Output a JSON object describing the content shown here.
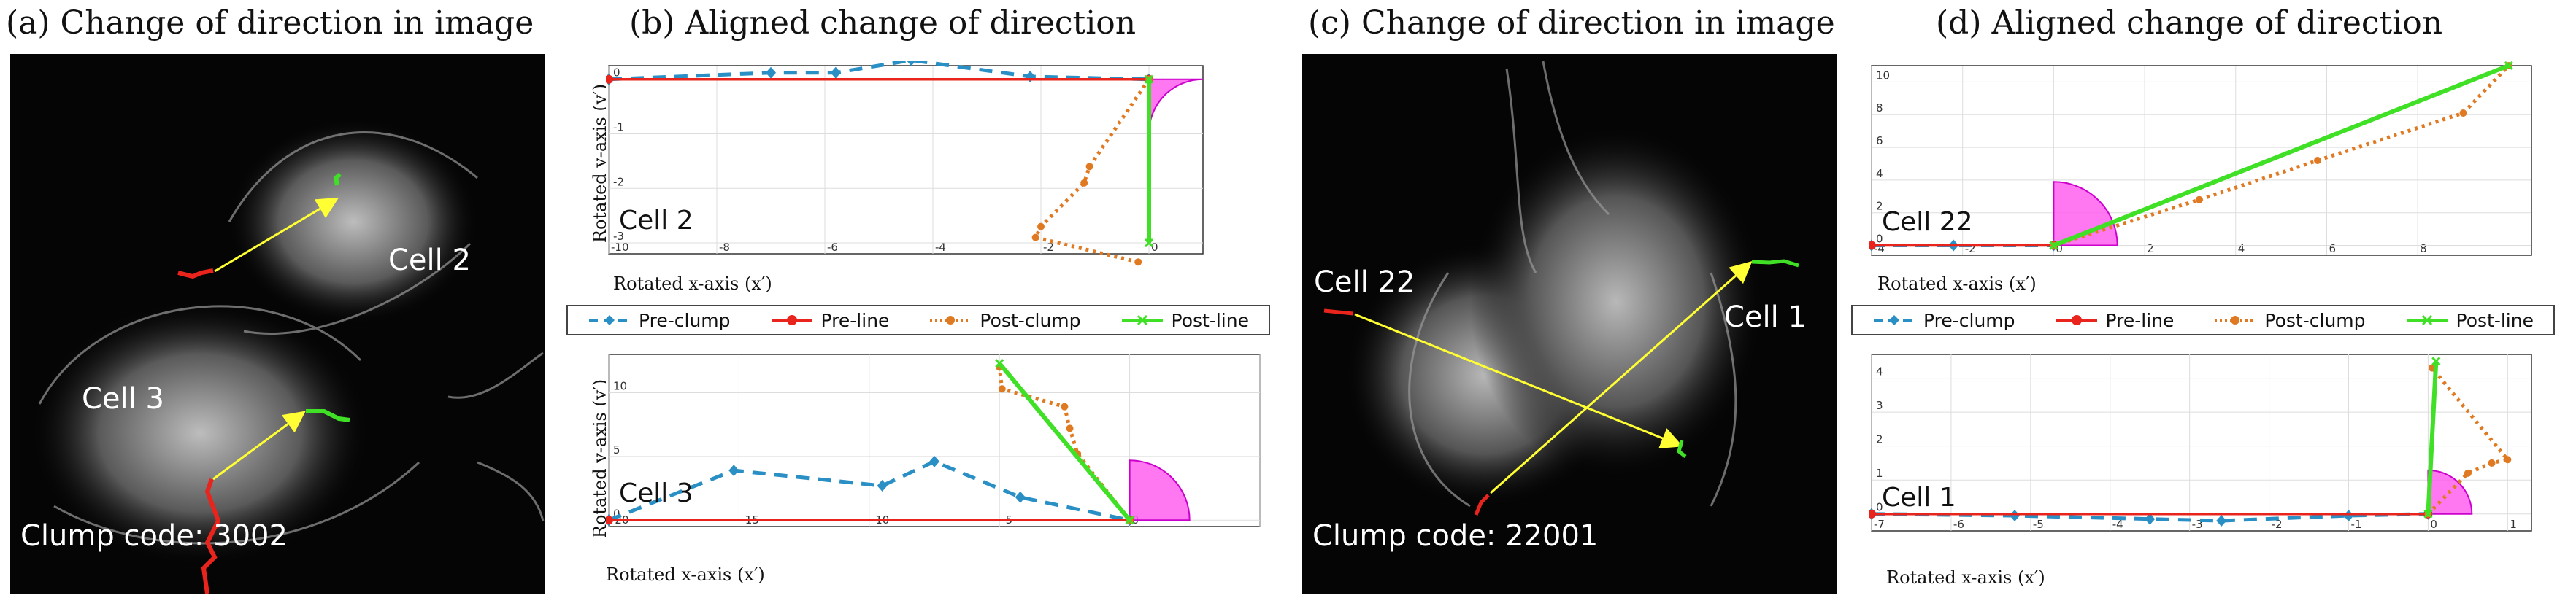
{
  "panels": {
    "a_title": "(a) Change of direction in image",
    "b_title": "(b) Aligned change of direction",
    "c_title": "(c) Change of direction in image",
    "d_title": "(d) Aligned change of direction"
  },
  "images": {
    "a": {
      "cell_left": "Cell 3",
      "cell_right": "Cell 2",
      "clump_code": "Clump code: 3002"
    },
    "c": {
      "cell_left": "Cell 22",
      "cell_right": "Cell 1",
      "clump_code": "Clump code: 22001"
    }
  },
  "legend": {
    "pre_clump": "Pre-clump",
    "pre_line": "Pre-line",
    "post_clump": "Post-clump",
    "post_line": "Post-line"
  },
  "colors": {
    "pre_clump": "#2a8fc4",
    "pre_line": "#e8241c",
    "post_clump": "#e07a22",
    "post_line": "#3fe025",
    "sector": "#ff55ee",
    "arrow": "#ffff33"
  },
  "axis_labels": {
    "x": "Rotated x-axis (x′)",
    "y": "Rotated y-axis (y′)"
  },
  "chart_data": [
    {
      "id": "b-top",
      "type": "line",
      "cell": "Cell 2",
      "xlim": [
        -10,
        1
      ],
      "ylim": [
        -3.2,
        0.25
      ],
      "xticks": [
        -10,
        -8,
        -6,
        -4,
        -2,
        0
      ],
      "yticks": [
        0,
        -1,
        -2,
        -3
      ],
      "sector": {
        "radius": 1.0,
        "start_deg": -90,
        "end_deg": 0
      },
      "series": [
        {
          "name": "Pre-clump",
          "x": [
            -10,
            -7,
            -5.8,
            -4.4,
            -2.2,
            0
          ],
          "y": [
            0,
            0.12,
            0.12,
            0.35,
            0.05,
            0
          ]
        },
        {
          "name": "Pre-line",
          "x": [
            -10,
            0
          ],
          "y": [
            0,
            0
          ]
        },
        {
          "name": "Post-clump",
          "x": [
            0,
            -1.1,
            -1.2,
            -2.0,
            -2.1,
            -0.2
          ],
          "y": [
            0,
            -1.6,
            -1.9,
            -2.7,
            -2.9,
            -3.35
          ]
        },
        {
          "name": "Post-line",
          "x": [
            0,
            0
          ],
          "y": [
            0,
            -3.0
          ]
        }
      ]
    },
    {
      "id": "b-bottom",
      "type": "line",
      "cell": "Cell 3",
      "xlim": [
        -20,
        5
      ],
      "ylim": [
        -0.5,
        13
      ],
      "xticks": [
        -20,
        -15,
        -10,
        -5,
        0,
        5
      ],
      "yticks": [
        0,
        5,
        10
      ],
      "sector": {
        "radius": 2.3,
        "start_deg": 0,
        "end_deg": 90
      },
      "series": [
        {
          "name": "Pre-clump",
          "x": [
            -20,
            -15.2,
            -9.5,
            -7.5,
            -4.2,
            0
          ],
          "y": [
            0,
            3.9,
            2.7,
            4.6,
            1.8,
            0
          ]
        },
        {
          "name": "Pre-line",
          "x": [
            -20,
            0
          ],
          "y": [
            0,
            0
          ]
        },
        {
          "name": "Post-clump",
          "x": [
            0,
            -2.0,
            -2.3,
            -2.5,
            -4.9,
            -5.0
          ],
          "y": [
            0,
            5.2,
            7.2,
            8.9,
            10.3,
            12.0
          ]
        },
        {
          "name": "Post-line",
          "x": [
            0,
            -5.0
          ],
          "y": [
            0,
            12.3
          ]
        }
      ]
    },
    {
      "id": "d-top",
      "type": "line",
      "cell": "Cell 22",
      "xlim": [
        -4,
        10.5
      ],
      "ylim": [
        -0.6,
        11
      ],
      "xticks": [
        -4,
        -2,
        0,
        2,
        4,
        6,
        8
      ],
      "yticks": [
        0,
        2,
        4,
        6,
        8,
        10
      ],
      "sector": {
        "radius": 1.4,
        "start_deg": 0,
        "end_deg": 90
      },
      "series": [
        {
          "name": "Pre-clump",
          "x": [
            -4,
            -2.2,
            0
          ],
          "y": [
            0,
            0,
            0
          ]
        },
        {
          "name": "Pre-line",
          "x": [
            -4,
            0
          ],
          "y": [
            0,
            0
          ]
        },
        {
          "name": "Post-clump",
          "x": [
            0,
            3.2,
            5.8,
            9.0,
            10.0
          ],
          "y": [
            0,
            2.8,
            5.2,
            8.1,
            11.0
          ]
        },
        {
          "name": "Post-line",
          "x": [
            0,
            10.0
          ],
          "y": [
            0,
            11.0
          ]
        }
      ]
    },
    {
      "id": "d-bottom",
      "type": "line",
      "cell": "Cell 1",
      "xlim": [
        -7,
        1.3
      ],
      "ylim": [
        -0.5,
        4.7
      ],
      "xticks": [
        -7,
        -6,
        -5,
        -4,
        -3,
        -2,
        -1,
        0,
        1
      ],
      "yticks": [
        0,
        1,
        2,
        3,
        4
      ],
      "sector": {
        "radius": 0.55,
        "start_deg": 0,
        "end_deg": 90
      },
      "series": [
        {
          "name": "Pre-clump",
          "x": [
            -7,
            -5.2,
            -3.5,
            -2.6,
            -1.0,
            0
          ],
          "y": [
            0,
            -0.05,
            -0.15,
            -0.2,
            -0.05,
            0
          ]
        },
        {
          "name": "Pre-line",
          "x": [
            -7,
            0
          ],
          "y": [
            0,
            0
          ]
        },
        {
          "name": "Post-clump",
          "x": [
            0,
            0.5,
            0.8,
            1.0,
            0.05
          ],
          "y": [
            0,
            1.2,
            1.5,
            1.6,
            4.3
          ]
        },
        {
          "name": "Post-line",
          "x": [
            0,
            0.1
          ],
          "y": [
            0,
            4.5
          ]
        }
      ]
    }
  ]
}
